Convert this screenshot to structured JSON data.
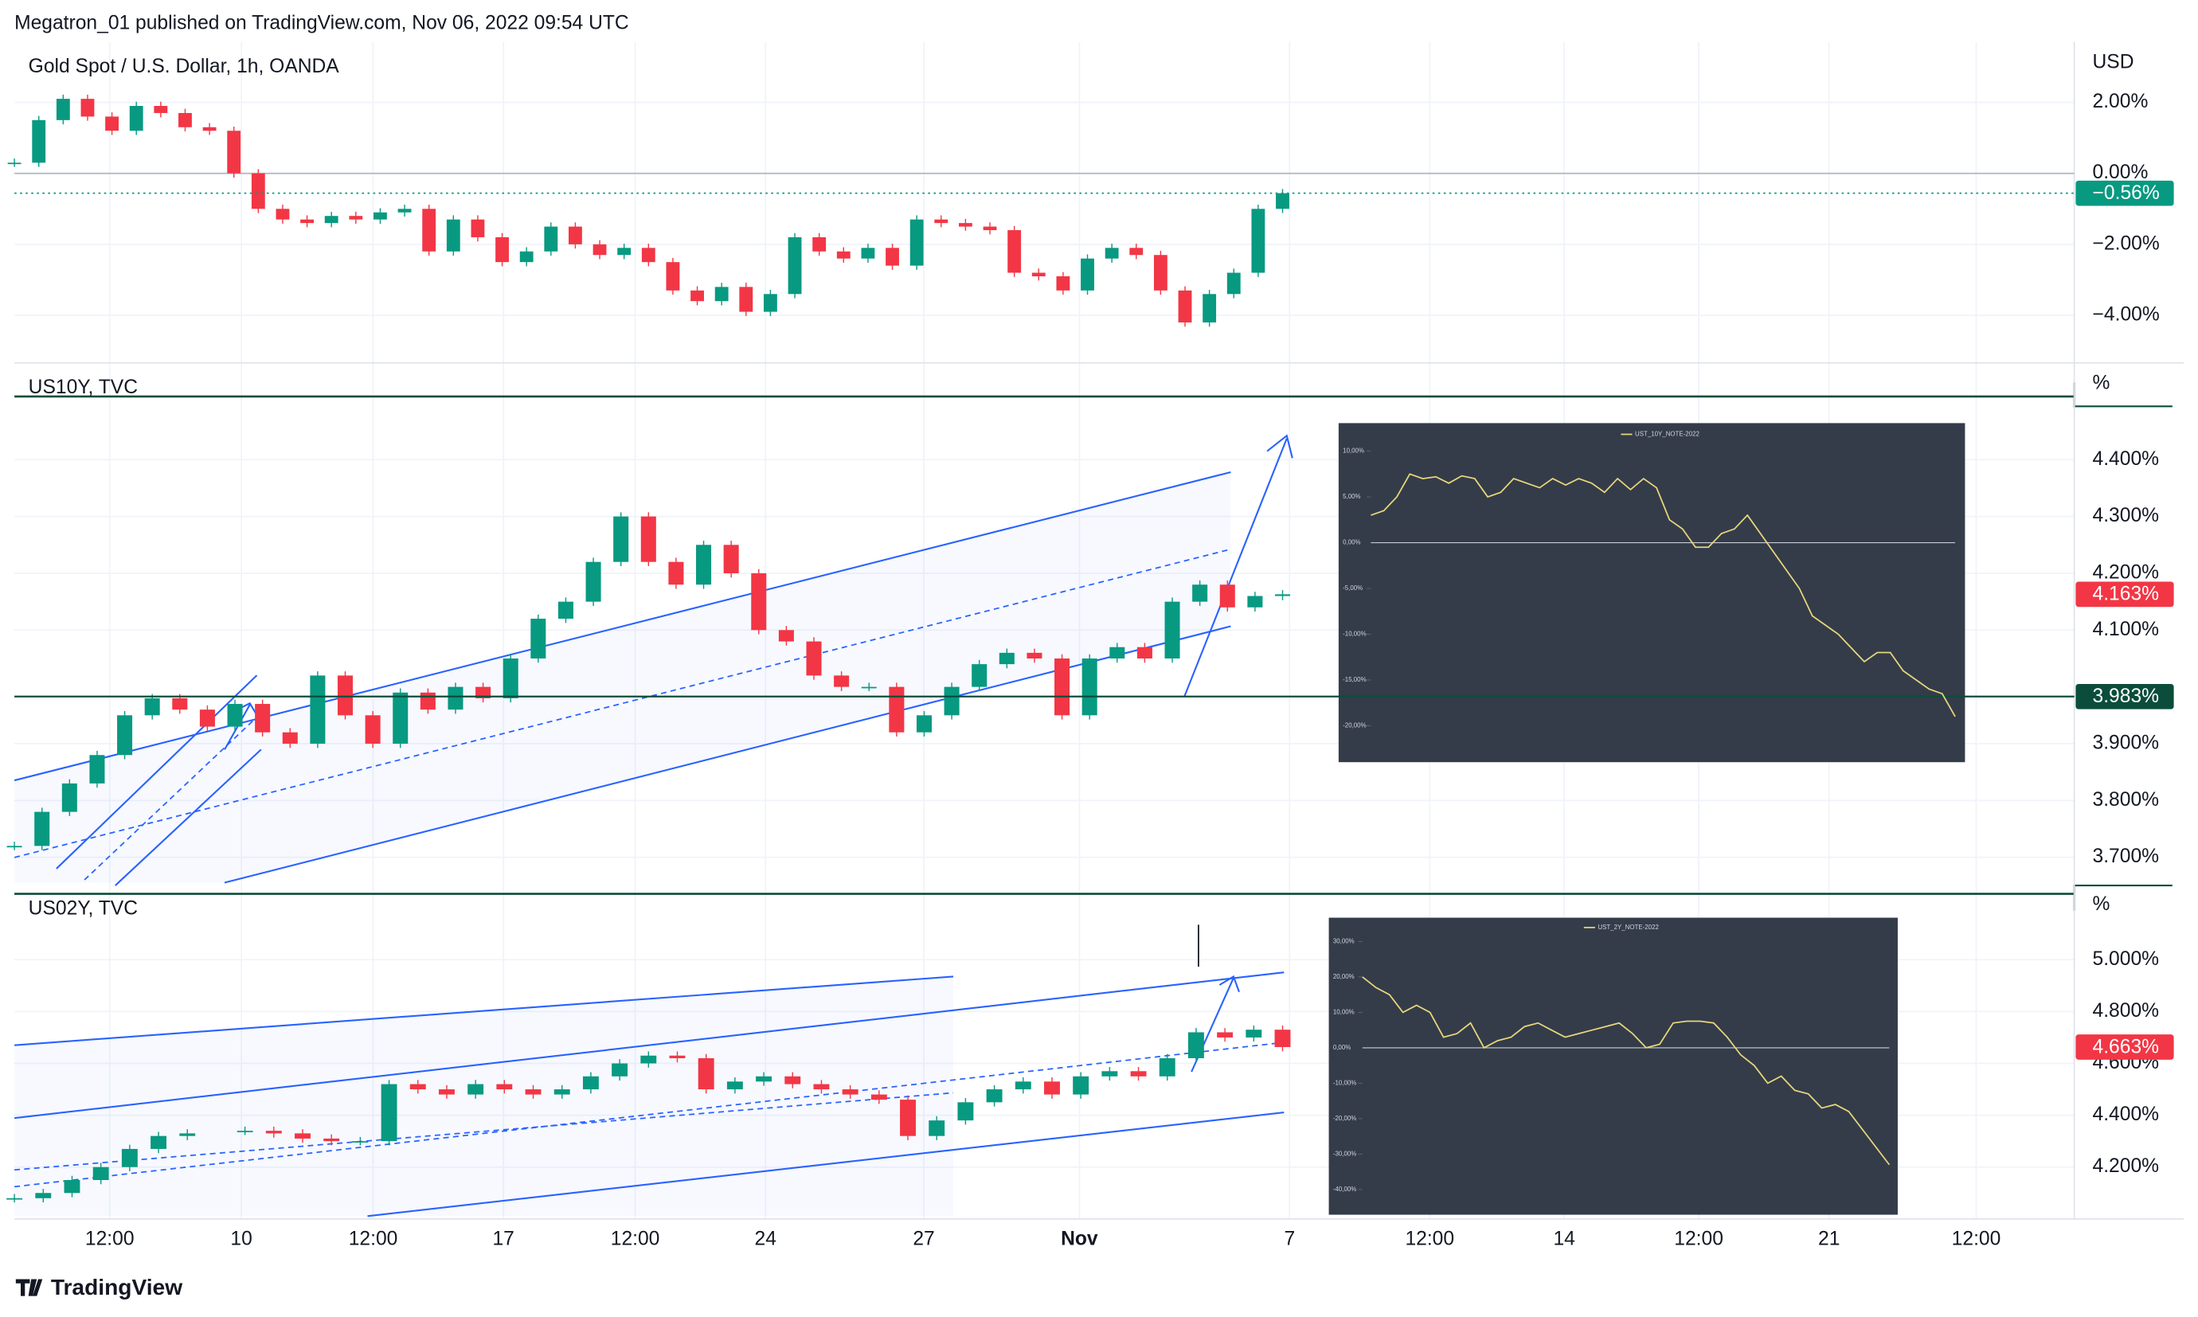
{
  "header": {
    "attribution": "Megatron_01 published on TradingView.com, Nov 06, 2022 09:54 UTC"
  },
  "chart_data": [
    {
      "type": "candles",
      "title": "Gold Spot / U.S. Dollar, 1h, OANDA",
      "axis_unit": "USD",
      "ylim": [
        -5.3,
        3.7
      ],
      "yticks": [
        {
          "value": 2,
          "label": "2.00%"
        },
        {
          "value": 0,
          "label": "0.00%"
        },
        {
          "value": -2,
          "label": "−2.00%"
        },
        {
          "value": -4,
          "label": "−4.00%"
        }
      ],
      "up_color": "#089981",
      "down_color": "#f23645",
      "values": [
        0.3,
        1.5,
        2.1,
        1.6,
        1.2,
        1.9,
        1.7,
        1.3,
        1.2,
        0.0,
        -1.0,
        -1.3,
        -1.4,
        -1.2,
        -1.3,
        -1.1,
        -1.0,
        -2.2,
        -1.3,
        -1.8,
        -2.5,
        -2.2,
        -1.5,
        -2.0,
        -2.3,
        -2.1,
        -2.5,
        -3.3,
        -3.6,
        -3.2,
        -3.9,
        -3.4,
        -1.8,
        -2.2,
        -2.4,
        -2.1,
        -2.6,
        -1.3,
        -1.4,
        -1.5,
        -1.6,
        -2.8,
        -2.9,
        -3.3,
        -2.4,
        -2.1,
        -2.3,
        -3.3,
        -4.2,
        -3.4,
        -2.8,
        -1.0,
        -0.56
      ],
      "price_labels": [
        {
          "value": -0.56,
          "label": "−0.56%",
          "color": "#089981"
        }
      ]
    },
    {
      "type": "candles",
      "title": "US10Y, TVC",
      "axis_unit": "%",
      "ylim": [
        3.643,
        4.563
      ],
      "yticks": [
        {
          "value": 3.7,
          "label": "3.700%"
        },
        {
          "value": 3.8,
          "label": "3.800%"
        },
        {
          "value": 3.9,
          "label": "3.900%"
        },
        {
          "value": 4.1,
          "label": "4.100%"
        },
        {
          "value": 4.2,
          "label": "4.200%"
        },
        {
          "value": 4.3,
          "label": "4.300%"
        },
        {
          "value": 4.4,
          "label": "4.400%"
        }
      ],
      "up_color": "#089981",
      "down_color": "#f23645",
      "values": [
        3.72,
        3.78,
        3.83,
        3.88,
        3.95,
        3.98,
        3.96,
        3.93,
        3.97,
        3.92,
        3.9,
        4.02,
        3.95,
        3.9,
        3.99,
        3.96,
        4.0,
        3.98,
        4.05,
        4.12,
        4.15,
        4.22,
        4.3,
        4.22,
        4.18,
        4.25,
        4.2,
        4.1,
        4.08,
        4.02,
        4.0,
        4.0,
        3.92,
        3.95,
        4.0,
        4.04,
        4.06,
        4.05,
        3.95,
        4.05,
        4.07,
        4.05,
        4.15,
        4.18,
        4.14,
        4.16,
        4.163
      ],
      "price_labels": [
        {
          "value": 4.163,
          "label": "4.163%",
          "color": "#f23645"
        },
        {
          "value": 3.983,
          "label": "3.983%",
          "color": "#0b4d3a"
        }
      ]
    },
    {
      "type": "candles",
      "title": "US02Y, TVC",
      "axis_unit": "%",
      "ylim": [
        4.0,
        5.254
      ],
      "yticks": [
        {
          "value": 4.2,
          "label": "4.200%"
        },
        {
          "value": 4.4,
          "label": "4.400%"
        },
        {
          "value": 4.6,
          "label": "4.600%"
        },
        {
          "value": 4.8,
          "label": "4.800%"
        },
        {
          "value": 5.0,
          "label": "5.000%"
        }
      ],
      "up_color": "#089981",
      "down_color": "#f23645",
      "values": [
        4.08,
        4.1,
        4.15,
        4.2,
        4.27,
        4.32,
        4.33,
        null,
        4.34,
        4.33,
        4.31,
        4.3,
        4.3,
        4.52,
        4.5,
        4.48,
        4.52,
        4.5,
        4.48,
        4.5,
        4.55,
        4.6,
        4.63,
        4.62,
        4.5,
        4.53,
        4.55,
        4.52,
        4.5,
        4.48,
        4.46,
        4.32,
        4.38,
        4.45,
        4.5,
        4.53,
        4.48,
        4.55,
        4.57,
        4.55,
        4.62,
        4.72,
        4.7,
        4.73,
        4.663
      ],
      "price_labels": [
        {
          "value": 4.663,
          "label": "4.663%",
          "color": "#f23645"
        }
      ]
    },
    {
      "type": "line",
      "legend": "UST_10Y_NOTE-2022",
      "color": "#e8d77a",
      "ylim": [
        -20,
        10
      ],
      "yticks": [
        {
          "value": 10,
          "label": "10,00%"
        },
        {
          "value": 5,
          "label": "5,00%"
        },
        {
          "value": 0,
          "label": "0,00%"
        },
        {
          "value": -5,
          "label": "-5,00%"
        },
        {
          "value": -10,
          "label": "-10,00%"
        },
        {
          "value": -15,
          "label": "-15,00%"
        },
        {
          "value": -20,
          "label": "-20,00%"
        }
      ],
      "values": [
        3,
        3.5,
        5,
        7.5,
        7,
        7.2,
        6.5,
        7.3,
        7,
        5,
        5.5,
        7,
        6.5,
        6,
        7,
        6.3,
        7,
        6.5,
        5.5,
        7,
        5.8,
        7,
        6,
        2.5,
        1.5,
        -0.5,
        -0.5,
        1,
        1.5,
        3,
        1,
        -1,
        -3,
        -5,
        -8,
        -9,
        -10,
        -11.5,
        -13,
        -12,
        -12,
        -14,
        -15,
        -16,
        -16.5,
        -19
      ]
    },
    {
      "type": "line",
      "legend": "UST_2Y_NOTE-2022",
      "color": "#e8d77a",
      "ylim": [
        -40,
        30
      ],
      "yticks": [
        {
          "value": 30,
          "label": "30,00%"
        },
        {
          "value": 20,
          "label": "20,00%"
        },
        {
          "value": 10,
          "label": "10,00%"
        },
        {
          "value": 0,
          "label": "0,00%"
        },
        {
          "value": -10,
          "label": "-10,00%"
        },
        {
          "value": -20,
          "label": "-20,00%"
        },
        {
          "value": -30,
          "label": "-30,00%"
        },
        {
          "value": -40,
          "label": "-40,00%"
        }
      ],
      "values": [
        20,
        17,
        15,
        10,
        12,
        10,
        3,
        4,
        7,
        0,
        2,
        3,
        6,
        7,
        5,
        3,
        4,
        5,
        6,
        7,
        4,
        0,
        1,
        7,
        7.5,
        7.5,
        7,
        3,
        -2,
        -5,
        -10,
        -8,
        -12,
        -13,
        -17,
        -16,
        -18,
        -23,
        -28,
        -33
      ]
    }
  ],
  "x_axis": {
    "labels": [
      "12:00",
      "10",
      "12:00",
      "17",
      "12:00",
      "24",
      "27",
      "Nov",
      "7",
      "12:00",
      "14",
      "12:00",
      "21",
      "12:00"
    ]
  },
  "footer": {
    "brand": "TradingView"
  }
}
